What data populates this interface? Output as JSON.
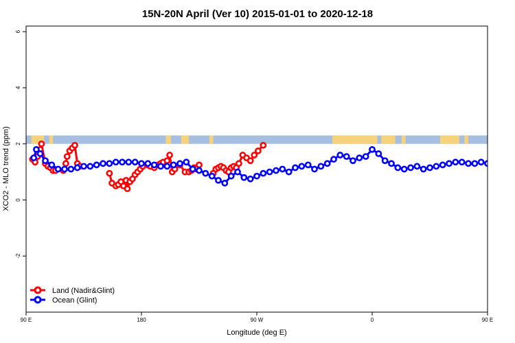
{
  "chart_data": {
    "type": "line",
    "title": "15N-20N April (Ver 10)   2015-01-01 to 2020-12-18",
    "xlabel": "Longitude (deg E)",
    "ylabel": "XCO2 - MLO trend (ppm)",
    "xlim": [
      90,
      450
    ],
    "ylim": [
      -4,
      6.2
    ],
    "x_ticks": [
      90,
      180,
      270,
      360,
      450,
      540
    ],
    "x_tick_labels": [
      "90 E",
      "180",
      "90 W",
      "0",
      "90 E",
      "180"
    ],
    "y_ticks": [
      -2,
      0,
      2,
      4,
      6
    ],
    "y_tick_labels": [
      "-2",
      "0",
      "2",
      "4",
      "6"
    ],
    "grid": false,
    "legend_position": "bottom-left",
    "land_strip_colors": {
      "land": "#f7d27c",
      "ocean": "#a6bfe0"
    },
    "series": [
      {
        "name": "Land (Nadir&Glint)",
        "color": "#ff0000",
        "x": [
          95,
          97,
          99,
          101,
          102,
          105,
          107,
          109,
          111,
          113,
          119,
          121,
          122,
          124,
          126,
          128,
          130,
          132,
          155,
          157,
          160,
          162,
          164,
          166,
          168,
          169,
          171,
          173,
          175,
          177,
          179,
          181,
          185,
          187,
          190,
          193,
          195,
          197,
          200,
          202,
          204,
          206,
          210,
          214,
          217,
          219,
          221,
          223,
          225,
          236,
          238,
          240,
          242,
          244,
          246,
          248,
          250,
          252,
          254,
          256,
          259,
          262,
          265,
          268,
          271,
          275
        ],
        "y": [
          1.45,
          1.35,
          1.55,
          1.8,
          2.0,
          1.3,
          1.2,
          1.15,
          1.05,
          1.05,
          1.05,
          1.3,
          1.55,
          1.75,
          1.85,
          1.95,
          1.3,
          1.2,
          0.95,
          0.6,
          0.5,
          0.55,
          0.65,
          0.5,
          0.7,
          0.4,
          0.65,
          0.75,
          0.9,
          1.0,
          1.1,
          1.2,
          1.25,
          1.2,
          1.15,
          1.25,
          1.3,
          1.35,
          1.4,
          1.6,
          1.0,
          1.1,
          1.25,
          1.0,
          1.0,
          1.05,
          1.15,
          1.1,
          1.25,
          0.95,
          1.1,
          1.15,
          1.2,
          1.15,
          1.05,
          1.0,
          1.15,
          1.2,
          1.15,
          1.3,
          1.6,
          1.5,
          1.4,
          1.6,
          1.75,
          1.95
        ]
      },
      {
        "name": "Ocean (Glint)",
        "color": "#0000ff",
        "x": [
          96,
          98,
          101,
          105,
          110,
          115,
          120,
          125,
          130,
          135,
          140,
          145,
          150,
          155,
          160,
          165,
          170,
          175,
          180,
          185,
          190,
          195,
          200,
          205,
          210,
          215,
          220,
          225,
          230,
          235,
          240,
          245,
          250,
          255,
          260,
          265,
          270,
          275,
          280,
          285,
          290,
          295,
          300,
          305,
          310,
          315,
          320,
          325,
          330,
          335,
          340,
          345,
          350,
          355,
          360,
          365,
          370,
          375,
          380,
          385,
          390,
          395,
          400,
          405,
          410,
          415,
          420,
          425,
          430,
          435,
          440,
          445,
          450
        ],
        "y": [
          1.5,
          1.8,
          1.65,
          1.4,
          1.25,
          1.1,
          1.1,
          1.1,
          1.15,
          1.2,
          1.2,
          1.25,
          1.3,
          1.3,
          1.35,
          1.35,
          1.35,
          1.35,
          1.3,
          1.3,
          1.25,
          1.2,
          1.2,
          1.25,
          1.3,
          1.35,
          1.1,
          1.05,
          0.95,
          0.85,
          0.7,
          0.6,
          0.85,
          1.0,
          0.8,
          0.75,
          0.85,
          0.95,
          1.0,
          1.05,
          1.1,
          1.0,
          1.15,
          1.2,
          1.25,
          1.1,
          1.2,
          1.3,
          1.45,
          1.6,
          1.55,
          1.4,
          1.5,
          1.55,
          1.8,
          1.65,
          1.4,
          1.3,
          1.15,
          1.1,
          1.15,
          1.2,
          1.1,
          1.15,
          1.2,
          1.25,
          1.3,
          1.35,
          1.35,
          1.3,
          1.3,
          1.35,
          1.3
        ]
      }
    ]
  }
}
